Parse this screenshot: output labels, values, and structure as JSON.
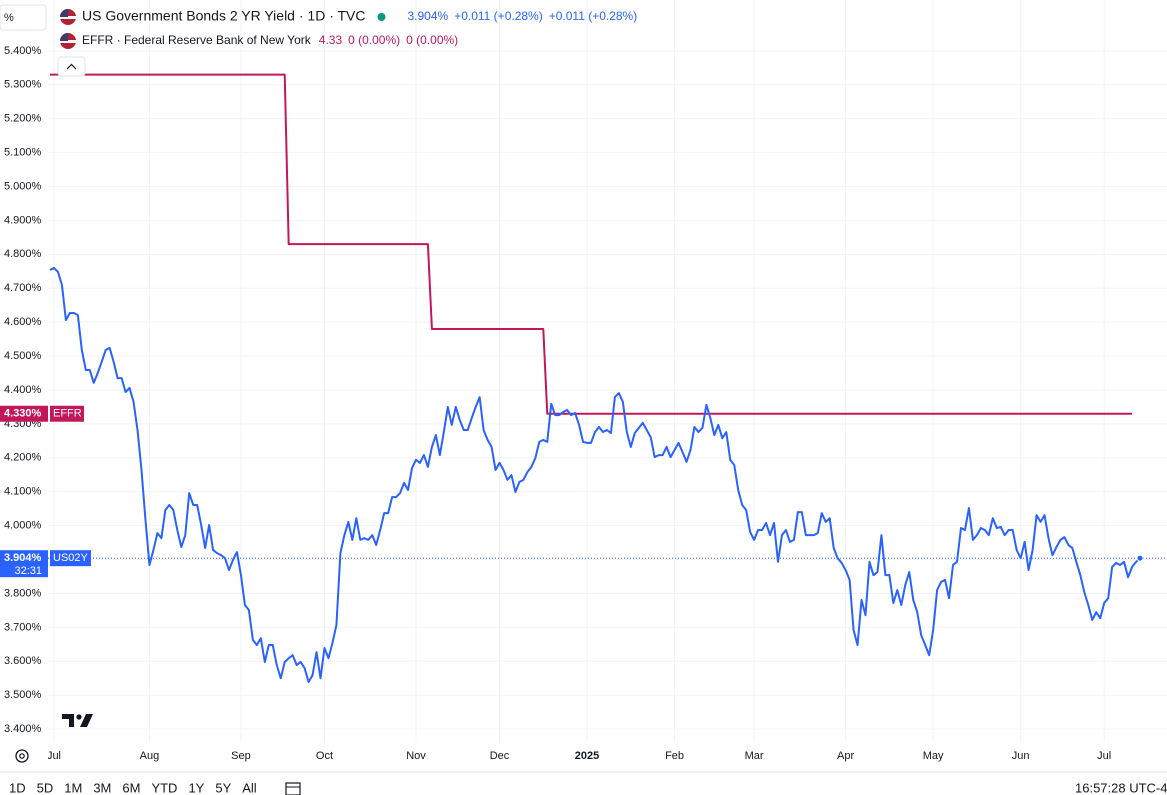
{
  "chart_data": {
    "type": "line",
    "y_unit": "%",
    "ylim": [
      3.362,
      5.55
    ],
    "yticks": [
      {
        "value": 3.4,
        "label": "3.400%"
      },
      {
        "value": 3.5,
        "label": "3.500%"
      },
      {
        "value": 3.6,
        "label": "3.600%"
      },
      {
        "value": 3.7,
        "label": "3.700%"
      },
      {
        "value": 3.8,
        "label": "3.800%"
      },
      {
        "value": 3.9,
        "label": "3.900%"
      },
      {
        "value": 4.0,
        "label": "4.000%"
      },
      {
        "value": 4.1,
        "label": "4.100%"
      },
      {
        "value": 4.2,
        "label": "4.200%"
      },
      {
        "value": 4.3,
        "label": "4.300%"
      },
      {
        "value": 4.4,
        "label": "4.400%"
      },
      {
        "value": 4.5,
        "label": "4.500%"
      },
      {
        "value": 4.6,
        "label": "4.600%"
      },
      {
        "value": 4.7,
        "label": "4.700%"
      },
      {
        "value": 4.8,
        "label": "4.800%"
      },
      {
        "value": 4.9,
        "label": "4.900%"
      },
      {
        "value": 5.0,
        "label": "5.000%"
      },
      {
        "value": 5.1,
        "label": "5.100%"
      },
      {
        "value": 5.2,
        "label": "5.200%"
      },
      {
        "value": 5.3,
        "label": "5.300%"
      },
      {
        "value": 5.4,
        "label": "5.400%"
      }
    ],
    "grid": true,
    "categories": [
      null,
      "Jul",
      null,
      null,
      null,
      null,
      null,
      null,
      null,
      null,
      null,
      null,
      null,
      null,
      null,
      null,
      null,
      null,
      null,
      null,
      null,
      null,
      null,
      null,
      null,
      "Aug",
      null,
      null,
      null,
      null,
      null,
      null,
      null,
      null,
      null,
      null,
      null,
      null,
      null,
      null,
      null,
      null,
      null,
      null,
      null,
      null,
      null,
      null,
      "Sep",
      null,
      null,
      null,
      null,
      null,
      null,
      null,
      null,
      null,
      null,
      null,
      null,
      null,
      null,
      null,
      null,
      null,
      null,
      null,
      null,
      "Oct",
      null,
      null,
      null,
      null,
      null,
      null,
      null,
      null,
      null,
      null,
      null,
      null,
      null,
      null,
      null,
      null,
      null,
      null,
      null,
      null,
      null,
      null,
      "Nov",
      null,
      null,
      null,
      null,
      null,
      null,
      null,
      null,
      null,
      null,
      null,
      null,
      null,
      null,
      null,
      null,
      null,
      null,
      null,
      null,
      "Dec",
      null,
      null,
      null,
      null,
      null,
      null,
      null,
      null,
      null,
      null,
      null,
      null,
      null,
      null,
      null,
      null,
      null,
      null,
      null,
      null,
      null,
      "2025",
      null,
      null,
      null,
      null,
      null,
      null,
      null,
      null,
      null,
      null,
      null,
      null,
      null,
      null,
      null,
      null,
      null,
      null,
      null,
      null,
      null,
      "Feb",
      null,
      null,
      null,
      null,
      null,
      null,
      null,
      null,
      null,
      null,
      null,
      null,
      null,
      null,
      null,
      null,
      null,
      null,
      null,
      "Mar",
      null,
      null,
      null,
      null,
      null,
      null,
      null,
      null,
      null,
      null,
      null,
      null,
      null,
      null,
      null,
      null,
      null,
      null,
      null,
      null,
      null,
      null,
      "Apr",
      null,
      null,
      null,
      null,
      null,
      null,
      null,
      null,
      null,
      null,
      null,
      null,
      null,
      null,
      null,
      null,
      null,
      null,
      null,
      null,
      null,
      "May",
      null,
      null,
      null,
      null,
      null,
      null,
      null,
      null,
      null,
      null,
      null,
      null,
      null,
      null,
      null,
      null,
      null,
      null,
      null,
      null,
      null,
      "Jun",
      null,
      null,
      null,
      null,
      null,
      null,
      null,
      null,
      null,
      null,
      null,
      null,
      null,
      null,
      null,
      null,
      null,
      null,
      null,
      null,
      "Jul",
      null,
      null,
      null,
      null,
      null,
      null,
      null,
      null,
      null
    ],
    "series": [
      {
        "name": "US Government Bonds 2 YR Yield · 1D · TVC",
        "color": "#2962ff",
        "legend_values": [
          "3.904%",
          "+0.011 (+0.28%)",
          "+0.011 (+0.28%)"
        ],
        "last_label": "3.904%",
        "tag": "US02Y",
        "countdown": "32:31",
        "last_price_line": true,
        "values": [
          4.754,
          4.76,
          4.748,
          4.71,
          4.606,
          4.627,
          4.627,
          4.621,
          4.518,
          4.459,
          4.459,
          4.421,
          4.45,
          4.483,
          4.518,
          4.524,
          4.483,
          4.435,
          4.435,
          4.394,
          4.406,
          4.365,
          4.282,
          4.164,
          4.017,
          3.884,
          3.928,
          3.978,
          3.963,
          4.046,
          4.061,
          4.046,
          3.987,
          3.937,
          3.972,
          4.096,
          4.061,
          4.061,
          4.002,
          3.934,
          4.002,
          3.928,
          3.919,
          3.913,
          3.904,
          3.869,
          3.899,
          3.922,
          3.854,
          3.766,
          3.751,
          3.663,
          3.648,
          3.668,
          3.598,
          3.648,
          3.648,
          3.589,
          3.55,
          3.598,
          3.609,
          3.618,
          3.589,
          3.598,
          3.58,
          3.539,
          3.559,
          3.627,
          3.55,
          3.639,
          3.609,
          3.654,
          3.707,
          3.919,
          3.972,
          4.011,
          3.958,
          4.022,
          3.958,
          3.963,
          3.958,
          3.972,
          3.943,
          3.987,
          4.037,
          4.037,
          4.084,
          4.084,
          4.096,
          4.126,
          4.105,
          4.17,
          4.194,
          4.185,
          4.208,
          4.173,
          4.232,
          4.267,
          4.208,
          4.276,
          4.35,
          4.297,
          4.35,
          4.312,
          4.282,
          4.282,
          4.317,
          4.35,
          4.379,
          4.282,
          4.253,
          4.232,
          4.164,
          4.185,
          4.164,
          4.135,
          4.149,
          4.099,
          4.129,
          4.135,
          4.158,
          4.173,
          4.199,
          4.247,
          4.253,
          4.247,
          4.359,
          4.326,
          4.326,
          4.335,
          4.341,
          4.326,
          4.332,
          4.297,
          4.247,
          4.244,
          4.244,
          4.276,
          4.291,
          4.276,
          4.282,
          4.273,
          4.379,
          4.391,
          4.365,
          4.276,
          4.232,
          4.273,
          4.288,
          4.303,
          4.282,
          4.261,
          4.202,
          4.208,
          4.208,
          4.232,
          4.202,
          4.223,
          4.244,
          4.217,
          4.188,
          4.223,
          4.291,
          4.276,
          4.288,
          4.356,
          4.317,
          4.267,
          4.297,
          4.258,
          4.276,
          4.194,
          4.179,
          4.105,
          4.061,
          4.046,
          3.981,
          3.958,
          3.987,
          3.987,
          4.008,
          3.972,
          4.008,
          3.893,
          3.972,
          3.987,
          3.952,
          3.958,
          4.04,
          4.04,
          3.972,
          3.972,
          3.972,
          3.978,
          4.037,
          4.011,
          4.022,
          3.934,
          3.904,
          3.89,
          3.869,
          3.84,
          3.692,
          3.648,
          3.781,
          3.736,
          3.893,
          3.854,
          3.863,
          3.972,
          3.854,
          3.854,
          3.772,
          3.81,
          3.766,
          3.825,
          3.863,
          3.781,
          3.745,
          3.677,
          3.648,
          3.618,
          3.692,
          3.81,
          3.834,
          3.84,
          3.786,
          3.884,
          3.893,
          3.993,
          3.987,
          4.052,
          3.958,
          3.972,
          3.993,
          3.987,
          3.972,
          4.022,
          3.993,
          3.996,
          3.972,
          3.987,
          3.987,
          3.928,
          3.904,
          3.952,
          3.869,
          3.928,
          4.031,
          4.011,
          4.031,
          3.963,
          3.913,
          3.937,
          3.958,
          3.966,
          3.943,
          3.934,
          3.893,
          3.854,
          3.804,
          3.766,
          3.722,
          3.745,
          3.727,
          3.772,
          3.786,
          3.878,
          3.89,
          3.884,
          3.893,
          3.848,
          3.878,
          3.893,
          3.904
        ]
      },
      {
        "name": "EFFR · Federal Reserve Bank of New York",
        "color": "#c2185b",
        "legend_values": [
          "4.33",
          "0 (0.00%)",
          "0 (0.00%)"
        ],
        "last_label": "4.330%",
        "tag": "EFFR",
        "values": [
          5.33,
          5.33,
          5.33,
          5.33,
          5.33,
          5.33,
          5.33,
          5.33,
          5.33,
          5.33,
          5.33,
          5.33,
          5.33,
          5.33,
          5.33,
          5.33,
          5.33,
          5.33,
          5.33,
          5.33,
          5.33,
          5.33,
          5.33,
          5.33,
          5.33,
          5.33,
          5.33,
          5.33,
          5.33,
          5.33,
          5.33,
          5.33,
          5.33,
          5.33,
          5.33,
          5.33,
          5.33,
          5.33,
          5.33,
          5.33,
          5.33,
          5.33,
          5.33,
          5.33,
          5.33,
          5.33,
          5.33,
          5.33,
          5.33,
          5.33,
          5.33,
          5.33,
          5.33,
          5.33,
          5.33,
          5.33,
          5.33,
          5.33,
          5.33,
          5.33,
          4.83,
          4.83,
          4.83,
          4.83,
          4.83,
          4.83,
          4.83,
          4.83,
          4.83,
          4.83,
          4.83,
          4.83,
          4.83,
          4.83,
          4.83,
          4.83,
          4.83,
          4.83,
          4.83,
          4.83,
          4.83,
          4.83,
          4.83,
          4.83,
          4.83,
          4.83,
          4.83,
          4.83,
          4.83,
          4.83,
          4.83,
          4.83,
          4.83,
          4.83,
          4.83,
          4.83,
          4.58,
          4.58,
          4.58,
          4.58,
          4.58,
          4.58,
          4.58,
          4.58,
          4.58,
          4.58,
          4.58,
          4.58,
          4.58,
          4.58,
          4.58,
          4.58,
          4.58,
          4.58,
          4.58,
          4.58,
          4.58,
          4.58,
          4.58,
          4.58,
          4.58,
          4.58,
          4.58,
          4.58,
          4.58,
          4.33,
          4.33,
          4.33,
          4.33,
          4.33,
          4.33,
          4.33,
          4.33,
          4.33,
          4.33,
          4.33,
          4.33,
          4.33,
          4.33,
          4.33,
          4.33,
          4.33,
          4.33,
          4.33,
          4.33,
          4.33,
          4.33,
          4.33,
          4.33,
          4.33,
          4.33,
          4.33,
          4.33,
          4.33,
          4.33,
          4.33,
          4.33,
          4.33,
          4.33,
          4.33,
          4.33,
          4.33,
          4.33,
          4.33,
          4.33,
          4.33,
          4.33,
          4.33,
          4.33,
          4.33,
          4.33,
          4.33,
          4.33,
          4.33,
          4.33,
          4.33,
          4.33,
          4.33,
          4.33,
          4.33,
          4.33,
          4.33,
          4.33,
          4.33,
          4.33,
          4.33,
          4.33,
          4.33,
          4.33,
          4.33,
          4.33,
          4.33,
          4.33,
          4.33,
          4.33,
          4.33,
          4.33,
          4.33,
          4.33,
          4.33,
          4.33,
          4.33,
          4.33,
          4.33,
          4.33,
          4.33,
          4.33,
          4.33,
          4.33,
          4.33,
          4.33,
          4.33,
          4.33,
          4.33,
          4.33,
          4.33,
          4.33,
          4.33,
          4.33,
          4.33,
          4.33,
          4.33,
          4.33,
          4.33,
          4.33,
          4.33,
          4.33,
          4.33,
          4.33,
          4.33,
          4.33,
          4.33,
          4.33,
          4.33,
          4.33,
          4.33,
          4.33,
          4.33,
          4.33,
          4.33,
          4.33,
          4.33,
          4.33,
          4.33,
          4.33,
          4.33,
          4.33,
          4.33,
          4.33,
          4.33,
          4.33,
          4.33,
          4.33,
          4.33,
          4.33,
          4.33,
          4.33,
          4.33,
          4.33,
          4.33,
          4.33,
          4.33,
          4.33,
          4.33,
          4.33,
          4.33,
          4.33,
          4.33,
          4.33,
          4.33,
          4.33,
          4.33,
          4.33,
          null,
          null
        ]
      }
    ],
    "ranges": [
      "1D",
      "5D",
      "1M",
      "3M",
      "6M",
      "YTD",
      "1Y",
      "5Y",
      "All"
    ],
    "clock": "16:57:28 UTC-4"
  }
}
